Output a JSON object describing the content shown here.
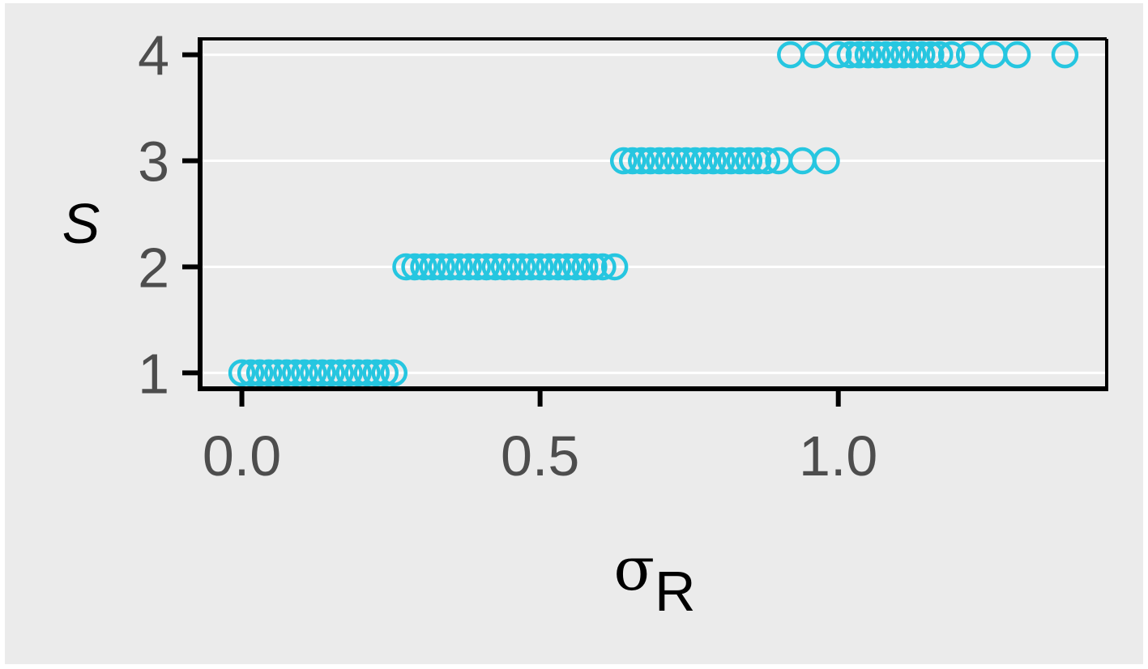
{
  "chart_data": {
    "type": "scatter",
    "title": "",
    "xlabel": "σ",
    "xlabel_subscript": "R",
    "ylabel": "S",
    "xlim": [
      -0.07,
      1.45
    ],
    "ylim": [
      0.85,
      4.15
    ],
    "xticks": [
      0.0,
      0.5,
      1.0
    ],
    "xtick_labels": [
      "0.0",
      "0.5",
      "1.0"
    ],
    "yticks": [
      1,
      2,
      3,
      4
    ],
    "ytick_labels": [
      "1",
      "2",
      "3",
      "4"
    ],
    "grid": "horizontal major gridlines",
    "legend": "none",
    "marker": "open-circle",
    "colors": {
      "points": "#26c6e0",
      "panel": "#ebebeb",
      "grid": "#ffffff",
      "axis": "#000000"
    },
    "series": [
      {
        "values": [
          {
            "x": 0.0,
            "y": 1
          },
          {
            "x": 0.015,
            "y": 1
          },
          {
            "x": 0.03,
            "y": 1
          },
          {
            "x": 0.045,
            "y": 1
          },
          {
            "x": 0.06,
            "y": 1
          },
          {
            "x": 0.075,
            "y": 1
          },
          {
            "x": 0.09,
            "y": 1
          },
          {
            "x": 0.105,
            "y": 1
          },
          {
            "x": 0.12,
            "y": 1
          },
          {
            "x": 0.135,
            "y": 1
          },
          {
            "x": 0.15,
            "y": 1
          },
          {
            "x": 0.165,
            "y": 1
          },
          {
            "x": 0.18,
            "y": 1
          },
          {
            "x": 0.195,
            "y": 1
          },
          {
            "x": 0.21,
            "y": 1
          },
          {
            "x": 0.225,
            "y": 1
          },
          {
            "x": 0.24,
            "y": 1
          },
          {
            "x": 0.255,
            "y": 1
          },
          {
            "x": 0.275,
            "y": 2
          },
          {
            "x": 0.29,
            "y": 2
          },
          {
            "x": 0.305,
            "y": 2
          },
          {
            "x": 0.32,
            "y": 2
          },
          {
            "x": 0.335,
            "y": 2
          },
          {
            "x": 0.35,
            "y": 2
          },
          {
            "x": 0.365,
            "y": 2
          },
          {
            "x": 0.38,
            "y": 2
          },
          {
            "x": 0.395,
            "y": 2
          },
          {
            "x": 0.41,
            "y": 2
          },
          {
            "x": 0.425,
            "y": 2
          },
          {
            "x": 0.44,
            "y": 2
          },
          {
            "x": 0.455,
            "y": 2
          },
          {
            "x": 0.47,
            "y": 2
          },
          {
            "x": 0.485,
            "y": 2
          },
          {
            "x": 0.5,
            "y": 2
          },
          {
            "x": 0.515,
            "y": 2
          },
          {
            "x": 0.53,
            "y": 2
          },
          {
            "x": 0.545,
            "y": 2
          },
          {
            "x": 0.56,
            "y": 2
          },
          {
            "x": 0.575,
            "y": 2
          },
          {
            "x": 0.59,
            "y": 2
          },
          {
            "x": 0.605,
            "y": 2
          },
          {
            "x": 0.625,
            "y": 2
          },
          {
            "x": 0.64,
            "y": 3
          },
          {
            "x": 0.655,
            "y": 3
          },
          {
            "x": 0.67,
            "y": 3
          },
          {
            "x": 0.685,
            "y": 3
          },
          {
            "x": 0.7,
            "y": 3
          },
          {
            "x": 0.715,
            "y": 3
          },
          {
            "x": 0.73,
            "y": 3
          },
          {
            "x": 0.745,
            "y": 3
          },
          {
            "x": 0.76,
            "y": 3
          },
          {
            "x": 0.775,
            "y": 3
          },
          {
            "x": 0.79,
            "y": 3
          },
          {
            "x": 0.805,
            "y": 3
          },
          {
            "x": 0.82,
            "y": 3
          },
          {
            "x": 0.835,
            "y": 3
          },
          {
            "x": 0.85,
            "y": 3
          },
          {
            "x": 0.865,
            "y": 3
          },
          {
            "x": 0.88,
            "y": 3
          },
          {
            "x": 0.9,
            "y": 3
          },
          {
            "x": 0.94,
            "y": 3
          },
          {
            "x": 0.98,
            "y": 3
          },
          {
            "x": 0.92,
            "y": 4
          },
          {
            "x": 0.96,
            "y": 4
          },
          {
            "x": 1.0,
            "y": 4
          },
          {
            "x": 1.02,
            "y": 4
          },
          {
            "x": 1.035,
            "y": 4
          },
          {
            "x": 1.05,
            "y": 4
          },
          {
            "x": 1.065,
            "y": 4
          },
          {
            "x": 1.08,
            "y": 4
          },
          {
            "x": 1.095,
            "y": 4
          },
          {
            "x": 1.11,
            "y": 4
          },
          {
            "x": 1.125,
            "y": 4
          },
          {
            "x": 1.14,
            "y": 4
          },
          {
            "x": 1.155,
            "y": 4
          },
          {
            "x": 1.17,
            "y": 4
          },
          {
            "x": 1.19,
            "y": 4
          },
          {
            "x": 1.22,
            "y": 4
          },
          {
            "x": 1.26,
            "y": 4
          },
          {
            "x": 1.3,
            "y": 4
          },
          {
            "x": 1.38,
            "y": 4
          }
        ]
      }
    ]
  }
}
